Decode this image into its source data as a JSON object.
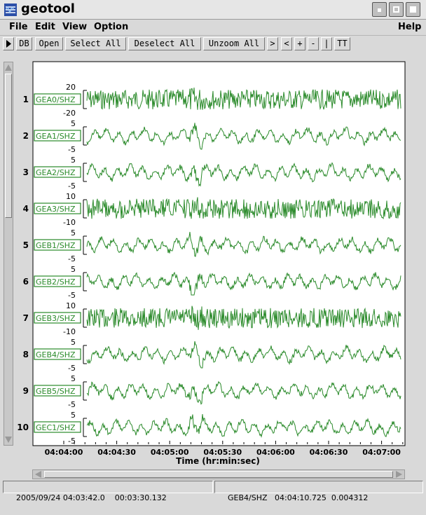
{
  "window": {
    "title": "geotool"
  },
  "menu": {
    "items": [
      "File",
      "Edit",
      "View",
      "Option"
    ],
    "help": "Help"
  },
  "toolbar": {
    "db": "DB",
    "open": "Open",
    "select_all": "Select All",
    "deselect_all": "Deselect All",
    "unzoom_all": "Unzoom All",
    "next": ">",
    "prev": "<",
    "plus": "+",
    "minus": "-",
    "bar": "|",
    "tt": "TT"
  },
  "plot": {
    "xlabel": "Time (hr:min:sec)",
    "xticks": [
      "04:04:00",
      "04:04:30",
      "04:05:00",
      "04:05:30",
      "04:06:00",
      "04:06:30",
      "04:07:00"
    ],
    "trace_color": "#2a8a2a",
    "channels": [
      {
        "num": "1",
        "name": "GEA0/SHZ",
        "top": "20",
        "bottom": "-20"
      },
      {
        "num": "2",
        "name": "GEA1/SHZ",
        "top": "5",
        "bottom": "-5"
      },
      {
        "num": "3",
        "name": "GEA2/SHZ",
        "top": "5",
        "bottom": "-5"
      },
      {
        "num": "4",
        "name": "GEA3/SHZ",
        "top": "10",
        "bottom": "-10"
      },
      {
        "num": "5",
        "name": "GEB1/SHZ",
        "top": "5",
        "bottom": "-5"
      },
      {
        "num": "6",
        "name": "GEB2/SHZ",
        "top": "5",
        "bottom": "-5"
      },
      {
        "num": "7",
        "name": "GEB3/SHZ",
        "top": "10",
        "bottom": "-10"
      },
      {
        "num": "8",
        "name": "GEB4/SHZ",
        "top": "5",
        "bottom": "-5"
      },
      {
        "num": "9",
        "name": "GEB5/SHZ",
        "top": "5",
        "bottom": "-5"
      },
      {
        "num": "10",
        "name": "GEC1/SHZ",
        "top": "5",
        "bottom": "-5"
      }
    ]
  },
  "status": {
    "datetime": "2005/09/24 04:03:42.0",
    "duration": "00:03:30.132",
    "channel": "GEB4/SHZ",
    "time": "04:04:10.725",
    "value": "0.004312"
  }
}
